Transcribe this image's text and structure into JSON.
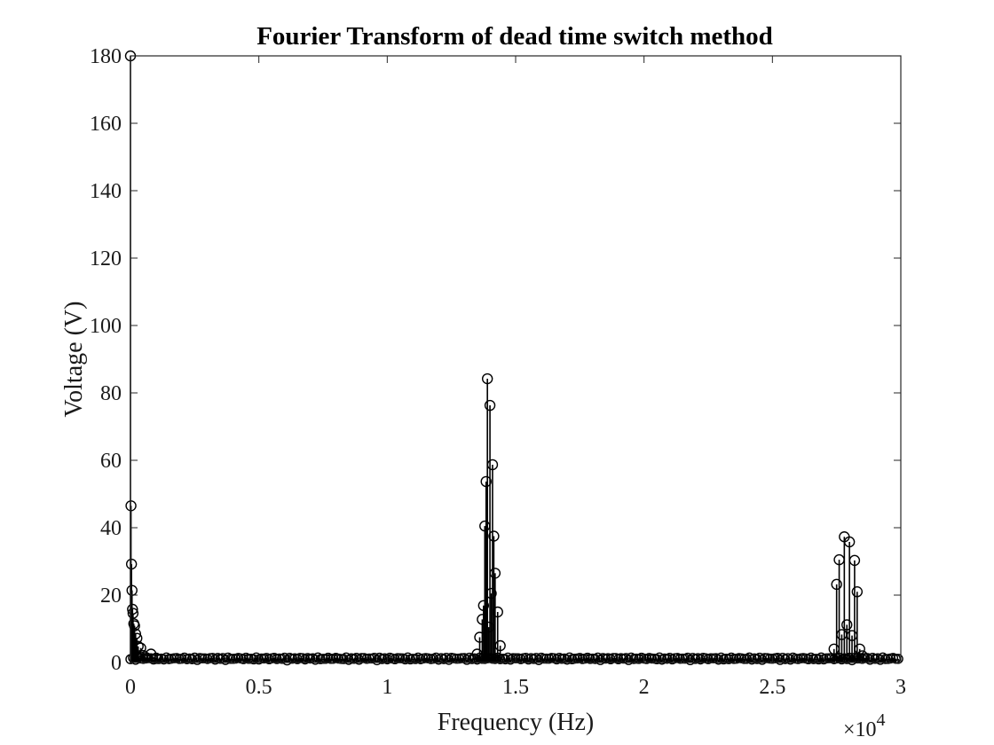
{
  "chart_data": {
    "type": "stem",
    "title": "Fourier Transform of dead time switch method",
    "xlabel": "Frequency (Hz)",
    "ylabel": "Voltage (V)",
    "x_multiplier_label": "×10",
    "x_multiplier_exponent": "4",
    "x_scale": 10000,
    "xlim": [
      0,
      30000
    ],
    "ylim": [
      0,
      180
    ],
    "xticks": [
      0,
      5000,
      10000,
      15000,
      20000,
      25000,
      30000
    ],
    "xtick_labels": [
      "0",
      "0.5",
      "1",
      "1.5",
      "2",
      "2.5",
      "3"
    ],
    "yticks": [
      0,
      20,
      40,
      60,
      80,
      100,
      120,
      140,
      160,
      180
    ],
    "ytick_labels": [
      "0",
      "20",
      "40",
      "60",
      "80",
      "100",
      "120",
      "140",
      "160",
      "180"
    ],
    "grid": false,
    "marker": "circle",
    "color": "#000000",
    "series": [
      {
        "x": [
          0,
          20,
          40,
          60,
          80,
          100,
          130,
          160,
          200,
          250,
          300,
          400,
          500,
          600,
          800,
          1000,
          13500,
          13600,
          13700,
          13750,
          13800,
          13850,
          13900,
          13950,
          14000,
          14050,
          14100,
          14150,
          14200,
          14300,
          14400,
          27400,
          27500,
          27600,
          27700,
          27800,
          27900,
          28000,
          28100,
          28200,
          28300,
          28400,
          28500
        ],
        "y": [
          180,
          46.5,
          29.2,
          21.4,
          15.8,
          14.6,
          11.5,
          10.9,
          8.5,
          7.2,
          4.8,
          4.3,
          2.1,
          1.5,
          2.5,
          1.2,
          2.5,
          7.5,
          12.8,
          16.9,
          40.5,
          53.7,
          84.2,
          10.5,
          76.3,
          20.5,
          58.7,
          37.5,
          26.5,
          15.0,
          5.0,
          4.0,
          23.2,
          30.5,
          8.3,
          37.3,
          11.2,
          35.8,
          8.0,
          30.3,
          21.0,
          4.0,
          2.0
        ]
      }
    ]
  }
}
